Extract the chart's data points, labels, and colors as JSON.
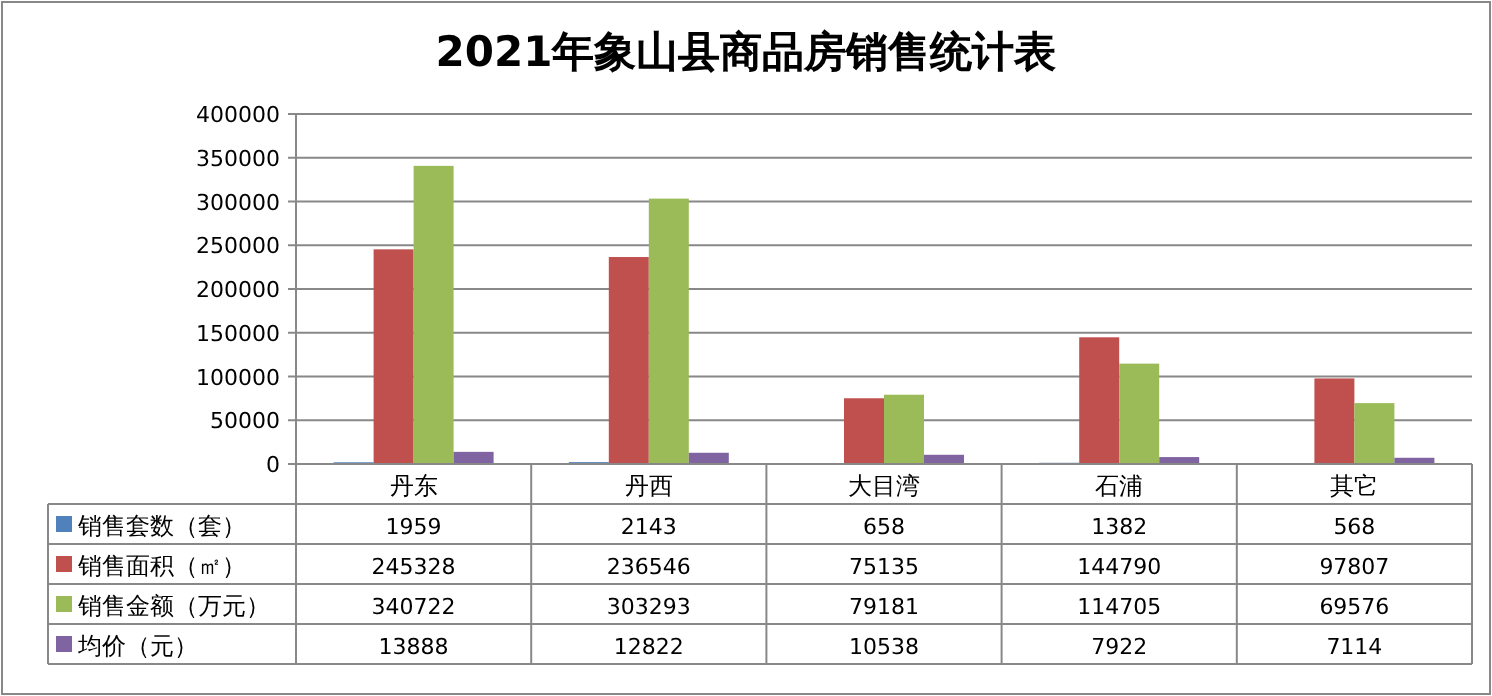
{
  "chart_data": {
    "type": "bar",
    "title": "2021年象山县商品房销售统计表",
    "categories": [
      "丹东",
      "丹西",
      "大目湾",
      "石浦",
      "其它"
    ],
    "series": [
      {
        "name": "销售套数（套）",
        "color": "#4f81bd",
        "values": [
          1959,
          2143,
          658,
          1382,
          568
        ]
      },
      {
        "name": "销售面积（㎡）",
        "color": "#c0504d",
        "values": [
          245328,
          236546,
          75135,
          144790,
          97807
        ]
      },
      {
        "name": "销售金额（万元）",
        "color": "#9bbb59",
        "values": [
          340722,
          303293,
          79181,
          114705,
          69576
        ]
      },
      {
        "name": "均价（元）",
        "color": "#8064a2",
        "values": [
          13888,
          12822,
          10538,
          7922,
          7114
        ]
      }
    ],
    "ylim": [
      0,
      400000
    ],
    "yticks": [
      0,
      50000,
      100000,
      150000,
      200000,
      250000,
      300000,
      350000,
      400000
    ],
    "grid": "y",
    "legend": "bottom",
    "data_labels": true
  }
}
